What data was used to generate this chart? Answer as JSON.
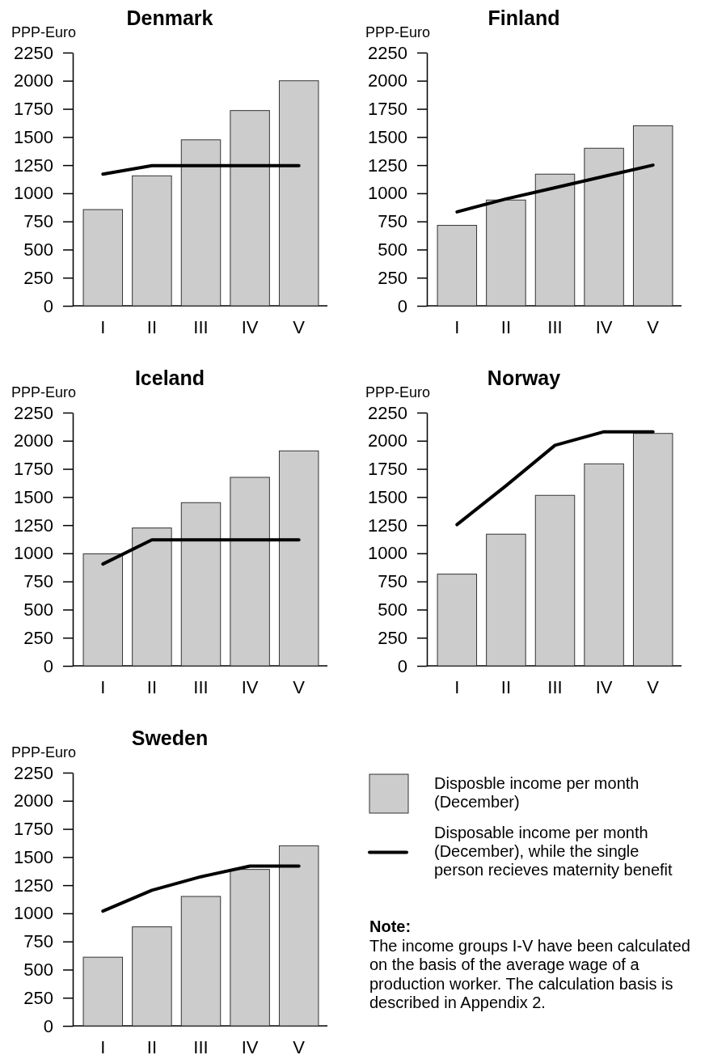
{
  "chart_data": [
    {
      "type": "bar",
      "title": "Denmark",
      "ylabel": "PPP-Euro",
      "categories": [
        "I",
        "II",
        "III",
        "IV",
        "V"
      ],
      "ylim": [
        0,
        2250
      ],
      "yticks": [
        0,
        250,
        500,
        750,
        1000,
        1250,
        1500,
        1750,
        2000,
        2250
      ],
      "series": [
        {
          "color": "#cccccc",
          "values": [
            855,
            1155,
            1475,
            1735,
            2000
          ]
        },
        {
          "type": "line",
          "color": "#000000",
          "values": [
            1170,
            1245,
            1245,
            1245,
            1245
          ]
        }
      ]
    },
    {
      "type": "bar",
      "title": "Finland",
      "ylabel": "PPP-Euro",
      "categories": [
        "I",
        "II",
        "III",
        "IV",
        "V"
      ],
      "ylim": [
        0,
        2250
      ],
      "yticks": [
        0,
        250,
        500,
        750,
        1000,
        1250,
        1500,
        1750,
        2000,
        2250
      ],
      "series": [
        {
          "color": "#cccccc",
          "values": [
            715,
            940,
            1170,
            1400,
            1600
          ]
        },
        {
          "type": "line",
          "color": "#000000",
          "values": [
            835,
            950,
            1050,
            1150,
            1250
          ]
        }
      ]
    },
    {
      "type": "bar",
      "title": "Iceland",
      "ylabel": "PPP-Euro",
      "categories": [
        "I",
        "II",
        "III",
        "IV",
        "V"
      ],
      "ylim": [
        0,
        2250
      ],
      "yticks": [
        0,
        250,
        500,
        750,
        1000,
        1250,
        1500,
        1750,
        2000,
        2250
      ],
      "series": [
        {
          "color": "#cccccc",
          "values": [
            995,
            1225,
            1450,
            1675,
            1910
          ]
        },
        {
          "type": "line",
          "color": "#000000",
          "values": [
            905,
            1120,
            1120,
            1120,
            1120
          ]
        }
      ]
    },
    {
      "type": "bar",
      "title": "Norway",
      "ylabel": "PPP-Euro",
      "categories": [
        "I",
        "II",
        "III",
        "IV",
        "V"
      ],
      "ylim": [
        0,
        2250
      ],
      "yticks": [
        0,
        250,
        500,
        750,
        1000,
        1250,
        1500,
        1750,
        2000,
        2250
      ],
      "series": [
        {
          "color": "#cccccc",
          "values": [
            815,
            1170,
            1515,
            1795,
            2065
          ]
        },
        {
          "type": "line",
          "color": "#000000",
          "values": [
            1255,
            1600,
            1960,
            2080,
            2080
          ]
        }
      ]
    },
    {
      "type": "bar",
      "title": "Sweden",
      "ylabel": "PPP-Euro",
      "categories": [
        "I",
        "II",
        "III",
        "IV",
        "V"
      ],
      "ylim": [
        0,
        2250
      ],
      "yticks": [
        0,
        250,
        500,
        750,
        1000,
        1250,
        1500,
        1750,
        2000,
        2250
      ],
      "legend": "right",
      "annotations": [
        "Note:",
        "The income groups I-V have been calculated on the basis of the average wage of a production worker. The calculation basis is described in Appendix 2."
      ],
      "series": [
        {
          "name": "Disposble income per month (December)",
          "color": "#cccccc",
          "values": [
            610,
            880,
            1150,
            1390,
            1600
          ]
        },
        {
          "type": "line",
          "name": "Disposable income per month (December), while the single person recieves maternity benefit",
          "color": "#000000",
          "values": [
            1020,
            1205,
            1325,
            1420,
            1420
          ]
        }
      ]
    }
  ]
}
